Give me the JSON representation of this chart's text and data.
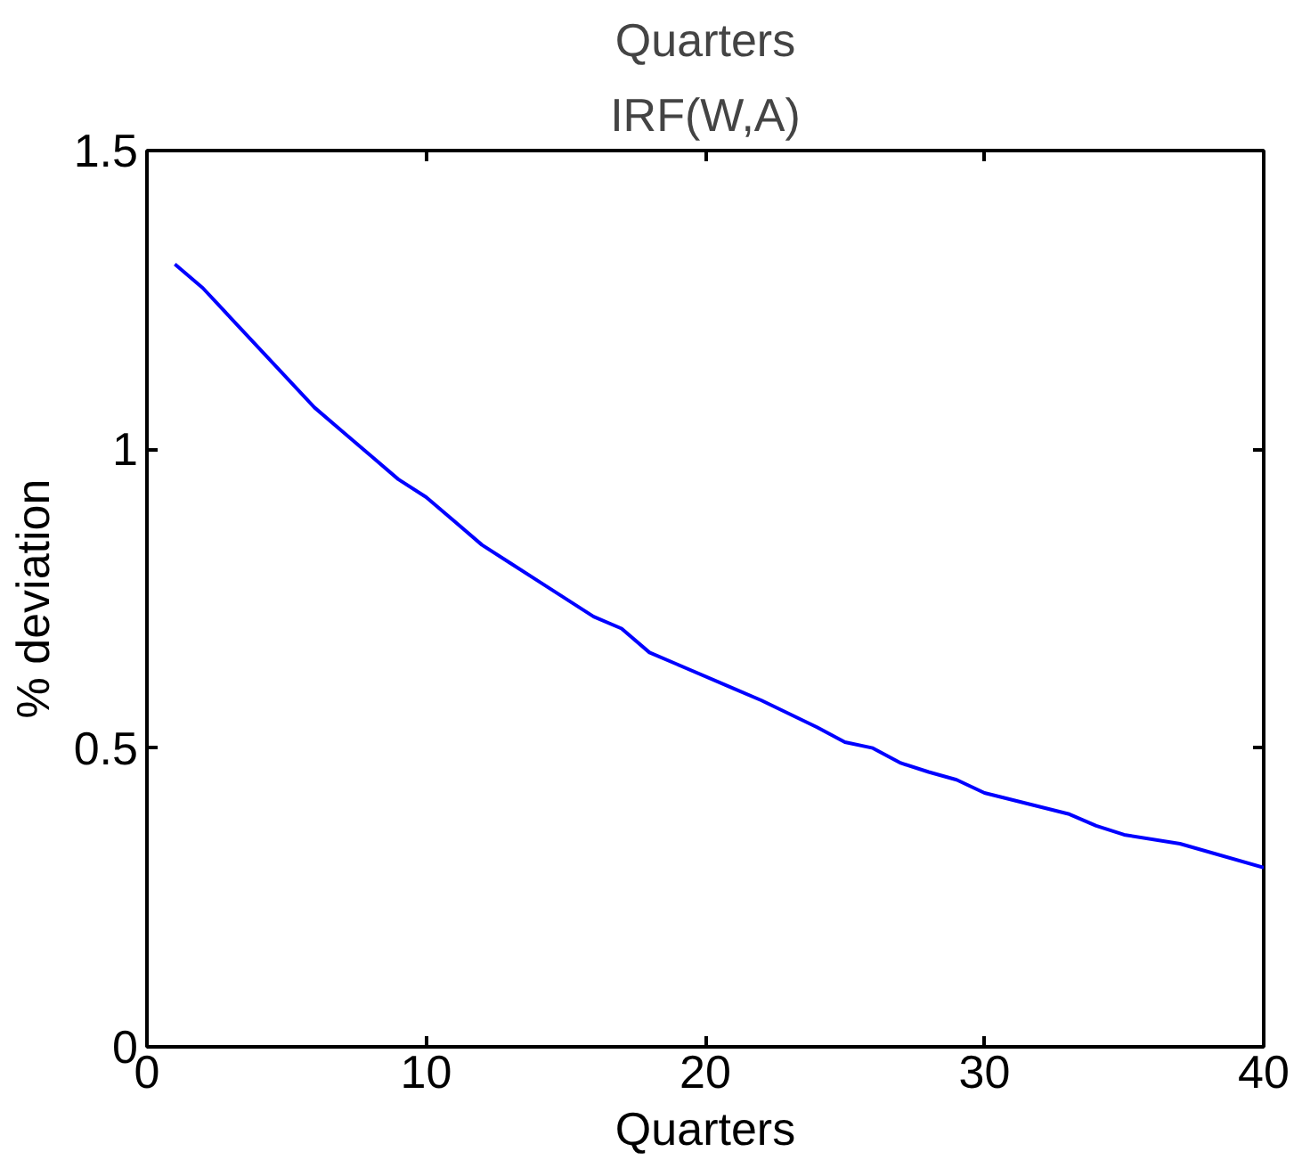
{
  "chart_data": {
    "type": "line",
    "title": "IRF(W,A)",
    "annotations": [
      "Quarters"
    ],
    "xlabel": "Quarters",
    "ylabel": "% deviation",
    "x": [
      1,
      2,
      3,
      4,
      6,
      7,
      8,
      9,
      10,
      12,
      13,
      14,
      16,
      17,
      18,
      19,
      21,
      22,
      24,
      25,
      26,
      27,
      28,
      29,
      30,
      33,
      34,
      35,
      37,
      40
    ],
    "series": [
      {
        "color": "#0000ff",
        "values": [
          1.31,
          1.27,
          1.22,
          1.17,
          1.07,
          1.03,
          0.99,
          0.95,
          0.92,
          0.84,
          0.81,
          0.78,
          0.72,
          0.7,
          0.66,
          0.64,
          0.6,
          0.58,
          0.535,
          0.51,
          0.5,
          0.475,
          0.46,
          0.447,
          0.425,
          0.39,
          0.37,
          0.355,
          0.34,
          0.3
        ]
      }
    ],
    "xlim": [
      0,
      40
    ],
    "ylim": [
      0,
      1.5
    ],
    "xticks": [
      0,
      10,
      20,
      30,
      40
    ],
    "yticks": [
      0,
      0.5,
      1,
      1.5
    ],
    "grid": false,
    "marker": "none",
    "line_style": "solid"
  }
}
